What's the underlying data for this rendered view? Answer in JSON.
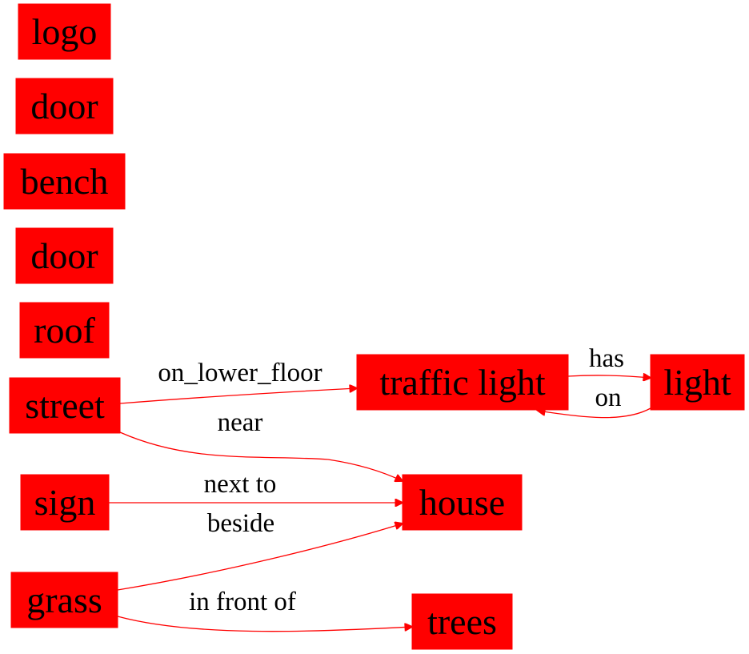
{
  "colors": {
    "node_fill": "#ff0000",
    "edge": "#ff0000",
    "text": "#000000",
    "background": "#ffffff"
  },
  "nodes": {
    "logo": "logo",
    "door_1": "door",
    "bench": "bench",
    "door_2": "door",
    "roof": "roof",
    "street": "street",
    "sign": "sign",
    "grass": "grass",
    "traffic_light": "traffic light",
    "light": "light",
    "house": "house",
    "trees": "trees"
  },
  "edges": [
    {
      "from": "street",
      "to": "traffic light",
      "label": "on_lower_floor"
    },
    {
      "from": "traffic light",
      "to": "light",
      "label": "has"
    },
    {
      "from": "light",
      "to": "traffic light",
      "label": "on"
    },
    {
      "from": "street",
      "to": "house",
      "label": "near"
    },
    {
      "from": "sign",
      "to": "house",
      "label": "next to"
    },
    {
      "from": "grass",
      "to": "house",
      "label": "beside"
    },
    {
      "from": "grass",
      "to": "trees",
      "label": "in front of"
    }
  ]
}
